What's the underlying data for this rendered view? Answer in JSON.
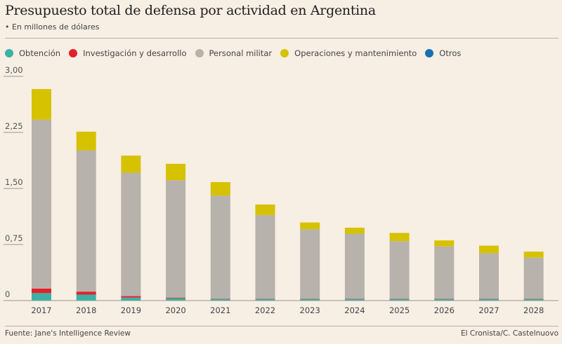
{
  "header": {
    "title": "Presupuesto total de defensa por actividad en Argentina",
    "subtitle": "• En millones de dólares"
  },
  "footer": {
    "source": "Fuente: Jane's Intelligence Review",
    "credit": "El Cronista/C. Castelnuovo"
  },
  "colors": {
    "background": "#f7eee4",
    "obtencion": "#3cb1a6",
    "investigacion": "#e4202d",
    "personal": "#b7b2ab",
    "operaciones": "#d6c200",
    "otros": "#1a6fb3"
  },
  "chart_data": {
    "type": "bar",
    "stacked": true,
    "title": "Presupuesto total de defensa por actividad en Argentina",
    "subtitle": "En millones de dólares",
    "xlabel": "",
    "ylabel": "",
    "ylim": [
      0,
      3.0
    ],
    "yticks": [
      0,
      0.75,
      1.5,
      2.25,
      3.0
    ],
    "ytick_labels": [
      "0",
      "0,75",
      "1,50",
      "2,25",
      "3,00"
    ],
    "grid": false,
    "legend_position": "top-left",
    "categories": [
      "2017",
      "2018",
      "2019",
      "2020",
      "2021",
      "2022",
      "2023",
      "2024",
      "2025",
      "2026",
      "2027",
      "2028"
    ],
    "series": [
      {
        "name": "Obtención",
        "color_key": "obtencion",
        "values": [
          0.1,
          0.08,
          0.04,
          0.03,
          0.02,
          0.02,
          0.02,
          0.02,
          0.02,
          0.02,
          0.02,
          0.02
        ]
      },
      {
        "name": "Investigación y desarrollo",
        "color_key": "investigacion",
        "values": [
          0.06,
          0.04,
          0.02,
          0.01,
          0.005,
          0.005,
          0.005,
          0.005,
          0.005,
          0.005,
          0.005,
          0.005
        ]
      },
      {
        "name": "Personal militar",
        "color_key": "personal",
        "values": [
          2.26,
          1.89,
          1.65,
          1.57,
          1.38,
          1.12,
          0.93,
          0.87,
          0.77,
          0.7,
          0.61,
          0.55
        ]
      },
      {
        "name": "Operaciones y mantenimiento",
        "color_key": "operaciones",
        "values": [
          0.41,
          0.25,
          0.23,
          0.22,
          0.18,
          0.14,
          0.09,
          0.08,
          0.11,
          0.08,
          0.1,
          0.08
        ]
      },
      {
        "name": "Otros",
        "color_key": "otros",
        "values": [
          0,
          0,
          0,
          0,
          0,
          0,
          0,
          0,
          0,
          0,
          0,
          0
        ]
      }
    ]
  }
}
